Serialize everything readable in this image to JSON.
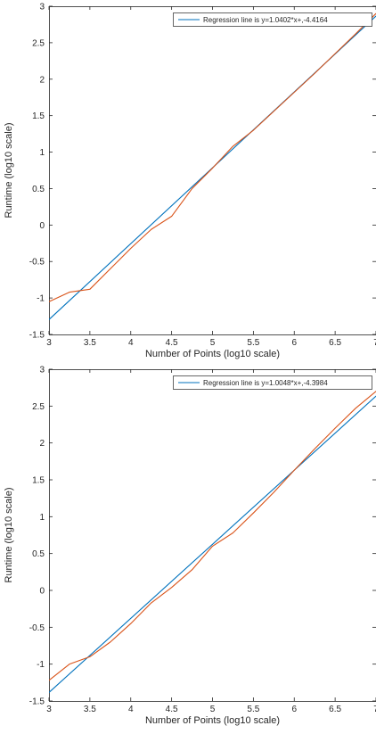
{
  "chart_data": [
    {
      "type": "line",
      "xlabel": "Number of Points (log10 scale)",
      "ylabel": "Runtime (log10 scale)",
      "xlim": [
        3,
        7
      ],
      "ylim": [
        -1.5,
        3
      ],
      "xticks": [
        3,
        3.5,
        4,
        4.5,
        5,
        5.5,
        6,
        6.5,
        7
      ],
      "xtick_labels": [
        "3",
        "3.5",
        "4",
        "4.5",
        "5",
        "5.5",
        "6",
        "6.5",
        "7"
      ],
      "yticks": [
        -1.5,
        -1,
        -0.5,
        0,
        0.5,
        1,
        1.5,
        2,
        2.5,
        3
      ],
      "ytick_labels": [
        "-1.5",
        "-1",
        "-0.5",
        "0",
        "0.5",
        "1",
        "1.5",
        "2",
        "2.5",
        "3"
      ],
      "grid": false,
      "legend_position": "top-right",
      "series": [
        {
          "name": "Regression line is y=1.0402*x+,-4.4164",
          "color": "#0072BD",
          "kind": "regression",
          "slope": 1.0402,
          "intercept": -4.4164
        },
        {
          "color": "#D95319",
          "kind": "measured",
          "x": [
            3,
            3.25,
            3.5,
            3.75,
            4,
            4.25,
            4.5,
            4.75,
            5,
            5.25,
            5.5,
            5.75,
            6,
            6.25,
            6.5,
            6.75,
            7
          ],
          "y": [
            -1.05,
            -0.92,
            -0.88,
            -0.6,
            -0.32,
            -0.06,
            0.12,
            0.5,
            0.78,
            1.08,
            1.3,
            1.56,
            1.82,
            2.08,
            2.35,
            2.62,
            2.9
          ]
        }
      ]
    },
    {
      "type": "line",
      "xlabel": "Number of Points (log10 scale)",
      "ylabel": "Runtime (log10 scale)",
      "xlim": [
        3,
        7
      ],
      "ylim": [
        -1.5,
        3
      ],
      "xticks": [
        3,
        3.5,
        4,
        4.5,
        5,
        5.5,
        6,
        6.5,
        7
      ],
      "xtick_labels": [
        "3",
        "3.5",
        "4",
        "4.5",
        "5",
        "5.5",
        "6",
        "6.5",
        "7"
      ],
      "yticks": [
        -1.5,
        -1,
        -0.5,
        0,
        0.5,
        1,
        1.5,
        2,
        2.5,
        3
      ],
      "ytick_labels": [
        "-1.5",
        "-1",
        "-0.5",
        "0",
        "0.5",
        "1",
        "1.5",
        "2",
        "2.5",
        "3"
      ],
      "grid": false,
      "legend_position": "top-right",
      "series": [
        {
          "name": "Regression line is y=1.0048*x+,-4.3984",
          "color": "#0072BD",
          "kind": "regression",
          "slope": 1.0048,
          "intercept": -4.3984
        },
        {
          "color": "#D95319",
          "kind": "measured",
          "x": [
            3,
            3.25,
            3.5,
            3.75,
            4,
            4.25,
            4.5,
            4.75,
            5,
            5.25,
            5.5,
            5.75,
            6,
            6.25,
            6.5,
            6.75,
            7
          ],
          "y": [
            -1.22,
            -1.0,
            -0.9,
            -0.7,
            -0.45,
            -0.17,
            0.04,
            0.28,
            0.6,
            0.78,
            1.05,
            1.33,
            1.63,
            1.92,
            2.2,
            2.47,
            2.7
          ]
        }
      ]
    }
  ]
}
